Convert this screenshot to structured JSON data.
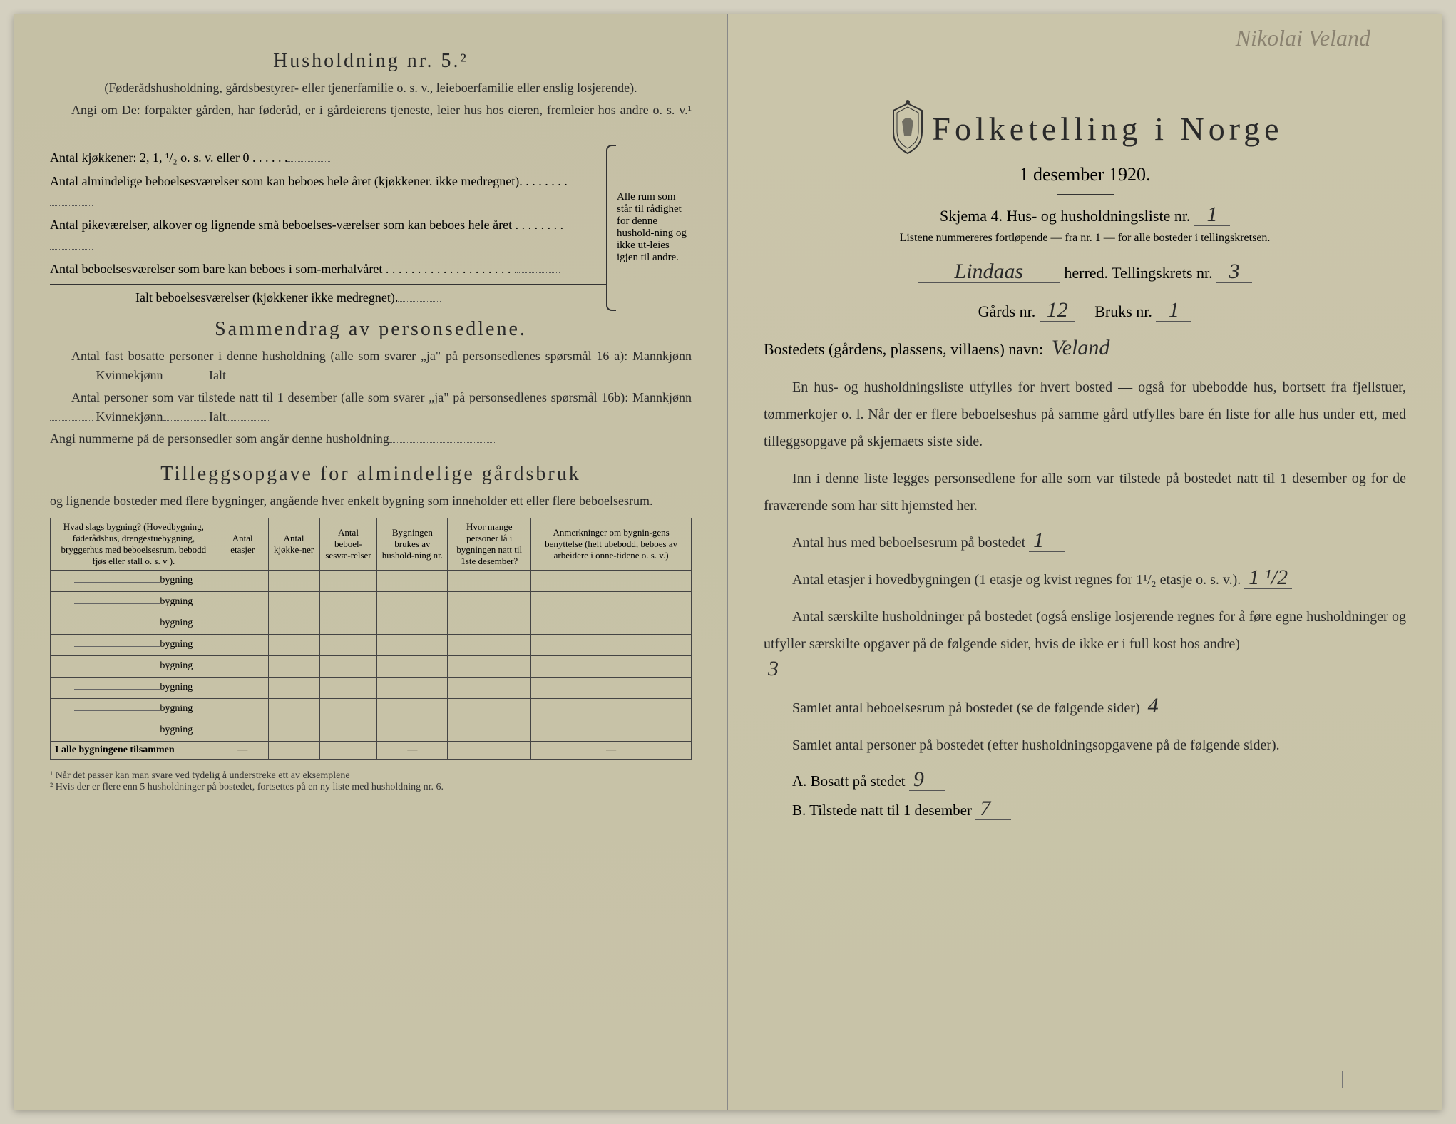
{
  "colors": {
    "paper": "#c8c3a8",
    "ink": "#2a2a2a",
    "handwriting": "#2a2a2a",
    "faded_handwriting": "#8a8270"
  },
  "left_page": {
    "section1_title": "Husholdning nr. 5.²",
    "section1_sub": "(Føderådshusholdning, gårdsbestyrer- eller tjenerfamilie o. s. v., leieboerfamilie eller enslig losjerende).",
    "section1_p1": "Angi om De: forpakter gården, har føderåd, er i gårdeierens tjeneste, leier hus hos eieren, fremleier hos andre o. s. v.¹",
    "kitchens_label": "Antal kjøkkener: 2, 1, ¹/₂ o. s. v. eller 0 . . . . . .",
    "rooms1": "Antal almindelige beboelsesværelser som kan beboes hele året (kjøkkener. ikke medregnet). . . . . . . .",
    "rooms2": "Antal pikeværelser, alkover og lignende små beboelses-værelser som kan beboes hele året . . . . . . . .",
    "rooms3": "Antal beboelsesværelser som bare kan beboes i som-merhalvåret . . . . . . . . . . . . . . . . . . . . .",
    "rooms_total": "Ialt beboelsesværelser (kjøkkener ikke medregnet).",
    "brace_text": "Alle rum som står til rådighet for denne hushold-ning og ikke ut-leies igjen til andre.",
    "section2_title": "Sammendrag av personsedlene.",
    "section2_p1": "Antal fast bosatte personer i denne husholdning (alle som svarer „ja\" på personsedlenes spørsmål 16 a): Mannkjønn",
    "kvinne": "Kvinnekjønn",
    "ialt": "Ialt",
    "section2_p2": "Antal personer som var tilstede natt til 1 desember (alle som svarer „ja\" på personsedlenes spørsmål 16b): Mannkjønn",
    "section2_p3": "Angi nummerne på de personsedler som angår denne husholdning",
    "section3_title": "Tilleggsopgave for almindelige gårdsbruk",
    "section3_sub": "og lignende bosteder med flere bygninger, angående hver enkelt bygning som inneholder ett eller flere beboelsesrum.",
    "table": {
      "headers": [
        "Hvad slags bygning?\n(Hovedbygning, føderådshus, drengestuebygning, bryggerhus med beboelsesrum, bebodd fjøs eller stall o. s. v ).",
        "Antal etasjer",
        "Antal kjøkke-ner",
        "Antal beboel-sesvæ-relser",
        "Bygningen brukes av hushold-ning nr.",
        "Hvor mange personer lå i bygningen natt til 1ste desember?",
        "Anmerkninger om bygnin-gens benyttelse (helt ubebodd, beboes av arbeidere i onne-tidene o. s. v.)"
      ],
      "row_suffix": "bygning",
      "row_count": 8,
      "total_label": "I alle bygningene tilsammen"
    },
    "footnote1": "¹ Når det passer kan man svare ved tydelig å understreke ett av eksemplene",
    "footnote2": "² Hvis der er flere enn 5 husholdninger på bostedet, fortsettes på en ny liste med husholdning nr. 6."
  },
  "right_page": {
    "handwritten_name": "Nikolai Veland",
    "main_title": "Folketelling i Norge",
    "subtitle": "1 desember 1920.",
    "schema": "Skjema 4.  Hus- og husholdningsliste nr.",
    "schema_nr": "1",
    "list_note": "Listene nummereres fortløpende — fra nr. 1 — for alle bosteder i tellingskretsen.",
    "herred_hw": "Lindaas",
    "herred_label": "herred.   Tellingskrets nr.",
    "krets_nr": "3",
    "gards_label": "Gårds nr.",
    "gards_nr": "12",
    "bruks_label": "Bruks nr.",
    "bruks_nr": "1",
    "bosted_label": "Bostedets (gårdens, plassens, villaens) navn:",
    "bosted_hw": "Veland",
    "para1": "En hus- og husholdningsliste utfylles for hvert bosted — også for ubebodde hus, bortsett fra fjellstuer, tømmerkojer o. l. Når der er flere beboelseshus på samme gård utfylles bare én liste for alle hus under ett, med tilleggsopgave på skjemaets siste side.",
    "para2": "Inn i denne liste legges personsedlene for alle som var tilstede på bostedet natt til 1 desember og for de fraværende som har sitt hjemsted her.",
    "q1": "Antal hus med beboelsesrum på bostedet",
    "q1_ans": "1",
    "q2": "Antal etasjer i hovedbygningen (1 etasje og kvist regnes for 1¹/₂ etasje o. s. v.).",
    "q2_ans": "1 ¹/2",
    "q3": "Antal særskilte husholdninger på bostedet (også enslige losjerende regnes for å føre egne husholdninger og utfyller særskilte opgaver på de følgende sider, hvis de ikke er i full kost hos andre)",
    "q3_ans": "3",
    "q4": "Samlet antal beboelsesrum på bostedet (se de følgende sider)",
    "q4_ans": "4",
    "q5": "Samlet antal personer på bostedet (efter husholdningsopgavene på de følgende sider).",
    "qA": "A.  Bosatt på stedet",
    "qA_ans": "9",
    "qB": "B.  Tilstede natt til 1 desember",
    "qB_ans": "7"
  }
}
